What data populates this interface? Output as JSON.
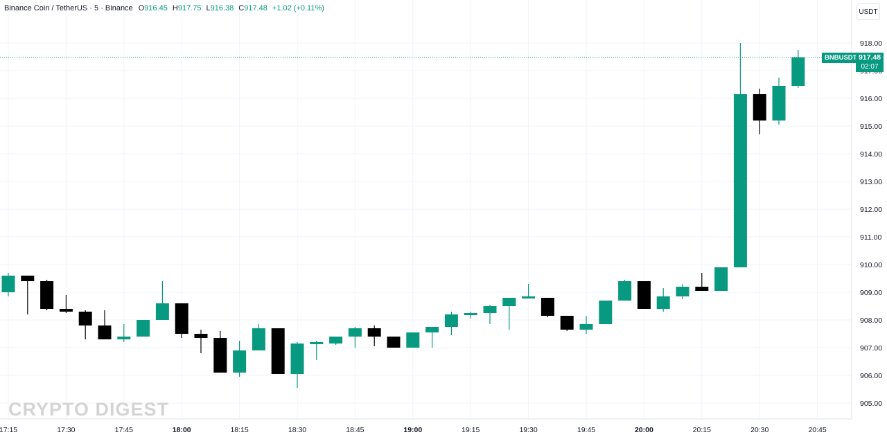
{
  "legend": {
    "symbol": "Binance Coin / TetherUS · 5 · Binance",
    "o_label": "O",
    "o": "916.45",
    "h_label": "H",
    "h": "917.75",
    "l_label": "L",
    "l": "916.38",
    "c_label": "C",
    "c": "917.48",
    "change": "+1.02 (+0.11%)"
  },
  "currency_button": "USDT",
  "price_tag": {
    "symbol": "BNBUSDT",
    "price": "917.48",
    "countdown": "02:07"
  },
  "watermark": "CRYPTO DIGEST",
  "colors": {
    "up": "#089981",
    "down": "#000000",
    "grid": "#f0f3fa",
    "axis_text": "#131722"
  },
  "chart_data": {
    "type": "candlestick",
    "ylim": [
      904.5,
      918.5
    ],
    "y_ticks": [
      "905.00",
      "906.00",
      "907.00",
      "908.00",
      "909.00",
      "910.00",
      "911.00",
      "912.00",
      "913.00",
      "914.00",
      "915.00",
      "916.00",
      "917.00",
      "918.00"
    ],
    "x_ticks": [
      "17:15",
      "17:30",
      "17:45",
      "18:00",
      "18:15",
      "18:30",
      "18:45",
      "19:00",
      "19:15",
      "19:30",
      "19:45",
      "20:00",
      "20:15",
      "20:30",
      "20:45"
    ],
    "x_ticks_bold": [
      "18:00",
      "19:00",
      "20:00"
    ],
    "last_price": 917.48,
    "candles": [
      {
        "t": "17:15",
        "o": 909.0,
        "h": 909.7,
        "l": 908.85,
        "c": 909.6
      },
      {
        "t": "17:20",
        "o": 909.6,
        "h": 909.6,
        "l": 908.2,
        "c": 909.4
      },
      {
        "t": "17:25",
        "o": 909.4,
        "h": 909.45,
        "l": 908.35,
        "c": 908.4
      },
      {
        "t": "17:30",
        "o": 908.4,
        "h": 908.9,
        "l": 908.25,
        "c": 908.3
      },
      {
        "t": "17:35",
        "o": 908.3,
        "h": 908.35,
        "l": 907.3,
        "c": 907.8
      },
      {
        "t": "17:40",
        "o": 907.8,
        "h": 908.35,
        "l": 907.3,
        "c": 907.3
      },
      {
        "t": "17:45",
        "o": 907.3,
        "h": 907.85,
        "l": 907.2,
        "c": 907.4
      },
      {
        "t": "17:50",
        "o": 907.4,
        "h": 907.95,
        "l": 907.4,
        "c": 908.0
      },
      {
        "t": "17:55",
        "o": 908.0,
        "h": 909.4,
        "l": 908.0,
        "c": 908.6
      },
      {
        "t": "18:00",
        "o": 908.6,
        "h": 908.6,
        "l": 907.35,
        "c": 907.5
      },
      {
        "t": "18:05",
        "o": 907.5,
        "h": 907.65,
        "l": 906.8,
        "c": 907.35
      },
      {
        "t": "18:10",
        "o": 907.35,
        "h": 907.6,
        "l": 906.1,
        "c": 906.1
      },
      {
        "t": "18:15",
        "o": 906.1,
        "h": 907.25,
        "l": 905.95,
        "c": 906.9
      },
      {
        "t": "18:20",
        "o": 906.9,
        "h": 907.85,
        "l": 906.9,
        "c": 907.7
      },
      {
        "t": "18:25",
        "o": 907.7,
        "h": 907.7,
        "l": 906.05,
        "c": 906.05
      },
      {
        "t": "18:30",
        "o": 906.05,
        "h": 907.2,
        "l": 905.55,
        "c": 907.15
      },
      {
        "t": "18:35",
        "o": 907.15,
        "h": 907.25,
        "l": 906.55,
        "c": 907.2
      },
      {
        "t": "18:40",
        "o": 907.15,
        "h": 907.4,
        "l": 907.1,
        "c": 907.4
      },
      {
        "t": "18:45",
        "o": 907.4,
        "h": 907.75,
        "l": 907.0,
        "c": 907.7
      },
      {
        "t": "18:50",
        "o": 907.7,
        "h": 907.8,
        "l": 907.05,
        "c": 907.4
      },
      {
        "t": "18:55",
        "o": 907.4,
        "h": 907.4,
        "l": 907.0,
        "c": 907.0
      },
      {
        "t": "19:00",
        "o": 907.0,
        "h": 907.55,
        "l": 907.0,
        "c": 907.55
      },
      {
        "t": "19:05",
        "o": 907.55,
        "h": 907.75,
        "l": 907.0,
        "c": 907.75
      },
      {
        "t": "19:10",
        "o": 907.75,
        "h": 908.3,
        "l": 907.45,
        "c": 908.2
      },
      {
        "t": "19:15",
        "o": 908.2,
        "h": 908.3,
        "l": 908.05,
        "c": 908.25
      },
      {
        "t": "19:20",
        "o": 908.25,
        "h": 908.55,
        "l": 907.85,
        "c": 908.5
      },
      {
        "t": "19:25",
        "o": 908.5,
        "h": 908.8,
        "l": 907.65,
        "c": 908.8
      },
      {
        "t": "19:30",
        "o": 908.8,
        "h": 909.3,
        "l": 908.8,
        "c": 908.85
      },
      {
        "t": "19:35",
        "o": 908.8,
        "h": 908.8,
        "l": 908.1,
        "c": 908.15
      },
      {
        "t": "19:40",
        "o": 908.15,
        "h": 908.15,
        "l": 907.6,
        "c": 907.65
      },
      {
        "t": "19:45",
        "o": 907.65,
        "h": 908.15,
        "l": 907.5,
        "c": 907.85
      },
      {
        "t": "19:50",
        "o": 907.85,
        "h": 908.7,
        "l": 907.85,
        "c": 908.7
      },
      {
        "t": "19:55",
        "o": 908.7,
        "h": 909.45,
        "l": 908.7,
        "c": 909.4
      },
      {
        "t": "20:00",
        "o": 909.4,
        "h": 909.4,
        "l": 908.4,
        "c": 908.4
      },
      {
        "t": "20:05",
        "o": 908.4,
        "h": 909.15,
        "l": 908.3,
        "c": 908.85
      },
      {
        "t": "20:10",
        "o": 908.85,
        "h": 909.3,
        "l": 908.75,
        "c": 909.2
      },
      {
        "t": "20:15",
        "o": 909.2,
        "h": 909.7,
        "l": 909.05,
        "c": 909.05
      },
      {
        "t": "20:20",
        "o": 909.05,
        "h": 909.9,
        "l": 909.05,
        "c": 909.9
      },
      {
        "t": "20:25",
        "o": 909.9,
        "h": 918.0,
        "l": 909.9,
        "c": 916.15
      },
      {
        "t": "20:30",
        "o": 916.15,
        "h": 916.35,
        "l": 914.7,
        "c": 915.2
      },
      {
        "t": "20:35",
        "o": 915.2,
        "h": 916.75,
        "l": 915.05,
        "c": 916.45
      },
      {
        "t": "20:40",
        "o": 916.45,
        "h": 917.75,
        "l": 916.38,
        "c": 917.48
      }
    ]
  }
}
